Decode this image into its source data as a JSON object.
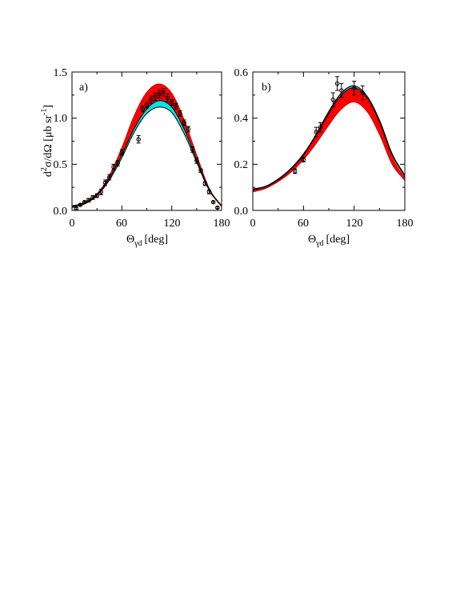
{
  "chart_data": [
    {
      "type": "line",
      "panel_label": "a)",
      "xlabel": {
        "symbol": "Θ",
        "sub": "γd",
        "unit": "[deg]"
      },
      "ylabel": {
        "d": "d",
        "sup2": "2",
        "sigma": "σ/dΩ [μb sr",
        "supm1": "-1",
        "close": "]"
      },
      "xlim": [
        0,
        180
      ],
      "ylim": [
        0,
        1.5
      ],
      "xticks": [
        0,
        60,
        120,
        180
      ],
      "yticks": [
        0.0,
        0.5,
        1.0,
        1.5
      ],
      "ytick_labels": [
        "0.0",
        "0.5",
        "1.0",
        "1.5"
      ],
      "grid": false,
      "colors": {
        "band_wide": "#ff0000",
        "band_wide_edge": "#cc0000",
        "band_narrow": "#00e5e5",
        "band_narrow_edge": "#000000",
        "points": "#000000"
      },
      "series": [
        {
          "x": [
            0,
            15,
            30,
            45,
            60,
            75,
            90,
            105,
            120,
            135,
            150,
            165,
            180
          ],
          "lower": [
            0.03,
            0.07,
            0.16,
            0.33,
            0.58,
            0.86,
            1.09,
            1.18,
            1.11,
            0.87,
            0.54,
            0.22,
            0.04
          ],
          "upper": [
            0.04,
            0.09,
            0.18,
            0.38,
            0.68,
            1.03,
            1.28,
            1.37,
            1.27,
            0.98,
            0.6,
            0.24,
            0.04
          ]
        },
        {
          "x": [
            0,
            15,
            30,
            45,
            60,
            75,
            90,
            105,
            120,
            135,
            150,
            165,
            180
          ],
          "lower": [
            0.04,
            0.07,
            0.16,
            0.33,
            0.57,
            0.85,
            1.05,
            1.12,
            1.06,
            0.83,
            0.52,
            0.22,
            0.05
          ],
          "upper": [
            0.05,
            0.08,
            0.17,
            0.35,
            0.6,
            0.89,
            1.1,
            1.19,
            1.12,
            0.88,
            0.55,
            0.23,
            0.05
          ]
        },
        {
          "x": [
            5,
            10,
            15,
            20,
            25,
            30,
            35,
            40,
            45,
            50,
            55,
            60,
            80,
            85,
            90,
            95,
            100,
            105,
            110,
            115,
            120,
            125,
            130,
            135,
            140,
            145,
            150,
            155,
            160,
            165,
            170,
            175
          ],
          "y": [
            0.02,
            0.06,
            0.09,
            0.11,
            0.14,
            0.16,
            0.2,
            0.3,
            0.36,
            0.47,
            0.51,
            0.63,
            0.77,
            1.1,
            1.14,
            1.2,
            1.23,
            1.26,
            1.28,
            1.22,
            1.17,
            1.13,
            1.05,
            0.95,
            0.88,
            0.66,
            0.54,
            0.43,
            0.29,
            0.2,
            0.09,
            0.03
          ],
          "err": [
            0.01,
            0.01,
            0.01,
            0.02,
            0.02,
            0.02,
            0.03,
            0.03,
            0.03,
            0.03,
            0.03,
            0.03,
            0.04,
            0.03,
            0.03,
            0.04,
            0.04,
            0.04,
            0.04,
            0.04,
            0.03,
            0.03,
            0.03,
            0.03,
            0.03,
            0.03,
            0.03,
            0.02,
            0.02,
            0.02,
            0.01,
            0.01
          ]
        }
      ]
    },
    {
      "type": "line",
      "panel_label": "b)",
      "xlabel": {
        "symbol": "Θ",
        "sub": "γd",
        "unit": "[deg]"
      },
      "xlim": [
        0,
        180
      ],
      "ylim": [
        0,
        0.6
      ],
      "xticks": [
        0,
        60,
        120,
        180
      ],
      "yticks": [
        0.0,
        0.2,
        0.4,
        0.6
      ],
      "ytick_labels": [
        "0.0",
        "0.2",
        "0.4",
        "0.6"
      ],
      "grid": false,
      "colors": {
        "band_wide": "#ff0000",
        "band_wide_edge": "#cc0000",
        "band_narrow": "#00e5e5",
        "band_narrow_edge": "#000000",
        "points": "#000000"
      },
      "series": [
        {
          "x": [
            0,
            15,
            30,
            45,
            60,
            75,
            90,
            105,
            120,
            135,
            150,
            165,
            180
          ],
          "lower": [
            0.08,
            0.095,
            0.125,
            0.165,
            0.22,
            0.29,
            0.37,
            0.44,
            0.47,
            0.43,
            0.33,
            0.2,
            0.13
          ],
          "upper": [
            0.087,
            0.1,
            0.13,
            0.176,
            0.238,
            0.33,
            0.43,
            0.51,
            0.54,
            0.495,
            0.38,
            0.23,
            0.14
          ]
        },
        {
          "x": [
            0,
            15,
            30,
            45,
            60,
            75,
            90,
            105,
            120,
            135,
            150,
            165,
            180
          ],
          "lower": [
            0.089,
            0.102,
            0.132,
            0.178,
            0.24,
            0.325,
            0.42,
            0.5,
            0.532,
            0.49,
            0.385,
            0.24,
            0.148
          ],
          "upper": [
            0.093,
            0.105,
            0.136,
            0.182,
            0.245,
            0.33,
            0.428,
            0.508,
            0.54,
            0.497,
            0.392,
            0.246,
            0.152
          ]
        },
        {
          "x": [
            50,
            60,
            75,
            80,
            95,
            100,
            105,
            120,
            130
          ],
          "y": [
            0.17,
            0.22,
            0.34,
            0.36,
            0.48,
            0.55,
            0.52,
            0.53,
            0.51
          ],
          "err": [
            0.01,
            0.01,
            0.02,
            0.02,
            0.03,
            0.03,
            0.03,
            0.03,
            0.03
          ]
        }
      ]
    }
  ]
}
